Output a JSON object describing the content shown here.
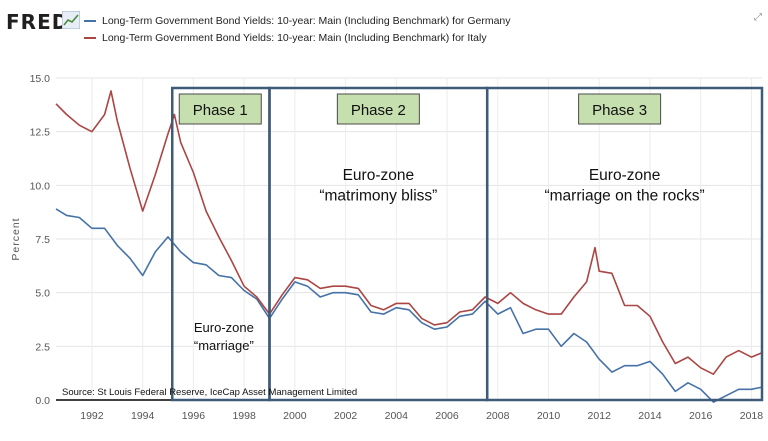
{
  "brand": "FRED",
  "brand_icon": "chart-line-icon",
  "corner_icon": "expand-icon",
  "legend": [
    {
      "label": "Long-Term Government Bond Yields: 10-year: Main (Including Benchmark) for Germany",
      "color": "#4572a7"
    },
    {
      "label": "Long-Term Government Bond Yields: 10-year: Main (Including Benchmark) for Italy",
      "color": "#aa4643"
    }
  ],
  "chart_data": {
    "type": "line",
    "ylabel": "Percent",
    "ylim": [
      0,
      15
    ],
    "xlim": [
      "1990-08",
      "2018-06"
    ],
    "x_ticks": [
      "1992",
      "1994",
      "1996",
      "1998",
      "2000",
      "2002",
      "2004",
      "2006",
      "2008",
      "2010",
      "2012",
      "2014",
      "2016",
      "2018"
    ],
    "y_ticks": [
      "0.0",
      "2.5",
      "5.0",
      "7.5",
      "10.0",
      "12.5",
      "15.0"
    ],
    "grid": true,
    "source": "Source: St Louis Federal Reserve, IceCap Asset Management Limited",
    "series": [
      {
        "name": "Long-Term Government Bond Yields: 10-year: Main (Including Benchmark) for Germany",
        "color": "#4572a7",
        "points": [
          [
            "1990-08",
            8.9
          ],
          [
            "1991-01",
            8.6
          ],
          [
            "1991-07",
            8.5
          ],
          [
            "1992-01",
            8.0
          ],
          [
            "1992-07",
            8.0
          ],
          [
            "1993-01",
            7.2
          ],
          [
            "1993-07",
            6.6
          ],
          [
            "1994-01",
            5.8
          ],
          [
            "1994-07",
            6.9
          ],
          [
            "1995-01",
            7.6
          ],
          [
            "1995-07",
            6.9
          ],
          [
            "1996-01",
            6.4
          ],
          [
            "1996-07",
            6.3
          ],
          [
            "1997-01",
            5.8
          ],
          [
            "1997-07",
            5.7
          ],
          [
            "1998-01",
            5.1
          ],
          [
            "1998-07",
            4.7
          ],
          [
            "1999-01",
            3.8
          ],
          [
            "1999-07",
            4.7
          ],
          [
            "2000-01",
            5.5
          ],
          [
            "2000-07",
            5.3
          ],
          [
            "2001-01",
            4.8
          ],
          [
            "2001-07",
            5.0
          ],
          [
            "2002-01",
            5.0
          ],
          [
            "2002-07",
            4.9
          ],
          [
            "2003-01",
            4.1
          ],
          [
            "2003-07",
            4.0
          ],
          [
            "2004-01",
            4.3
          ],
          [
            "2004-07",
            4.2
          ],
          [
            "2005-01",
            3.6
          ],
          [
            "2005-07",
            3.3
          ],
          [
            "2006-01",
            3.4
          ],
          [
            "2006-07",
            3.9
          ],
          [
            "2007-01",
            4.0
          ],
          [
            "2007-07",
            4.6
          ],
          [
            "2008-01",
            4.0
          ],
          [
            "2008-07",
            4.3
          ],
          [
            "2009-01",
            3.1
          ],
          [
            "2009-07",
            3.3
          ],
          [
            "2010-01",
            3.3
          ],
          [
            "2010-07",
            2.5
          ],
          [
            "2011-01",
            3.1
          ],
          [
            "2011-07",
            2.7
          ],
          [
            "2012-01",
            1.9
          ],
          [
            "2012-07",
            1.3
          ],
          [
            "2013-01",
            1.6
          ],
          [
            "2013-07",
            1.6
          ],
          [
            "2014-01",
            1.8
          ],
          [
            "2014-07",
            1.2
          ],
          [
            "2015-01",
            0.4
          ],
          [
            "2015-07",
            0.8
          ],
          [
            "2016-01",
            0.5
          ],
          [
            "2016-07",
            -0.1
          ],
          [
            "2017-01",
            0.2
          ],
          [
            "2017-07",
            0.5
          ],
          [
            "2018-01",
            0.5
          ],
          [
            "2018-06",
            0.6
          ]
        ]
      },
      {
        "name": "Long-Term Government Bond Yields: 10-year: Main (Including Benchmark) for Italy",
        "color": "#aa4643",
        "points": [
          [
            "1990-08",
            13.8
          ],
          [
            "1991-01",
            13.3
          ],
          [
            "1991-07",
            12.8
          ],
          [
            "1992-01",
            12.5
          ],
          [
            "1992-07",
            13.3
          ],
          [
            "1992-10",
            14.4
          ],
          [
            "1993-01",
            13.0
          ],
          [
            "1993-07",
            10.8
          ],
          [
            "1994-01",
            8.8
          ],
          [
            "1994-07",
            10.5
          ],
          [
            "1995-01",
            12.4
          ],
          [
            "1995-04",
            13.3
          ],
          [
            "1995-07",
            12.0
          ],
          [
            "1996-01",
            10.6
          ],
          [
            "1996-07",
            8.8
          ],
          [
            "1997-01",
            7.6
          ],
          [
            "1997-07",
            6.5
          ],
          [
            "1998-01",
            5.3
          ],
          [
            "1998-07",
            4.8
          ],
          [
            "1999-01",
            4.0
          ],
          [
            "1999-07",
            4.9
          ],
          [
            "2000-01",
            5.7
          ],
          [
            "2000-07",
            5.6
          ],
          [
            "2001-01",
            5.2
          ],
          [
            "2001-07",
            5.3
          ],
          [
            "2002-01",
            5.3
          ],
          [
            "2002-07",
            5.2
          ],
          [
            "2003-01",
            4.4
          ],
          [
            "2003-07",
            4.2
          ],
          [
            "2004-01",
            4.5
          ],
          [
            "2004-07",
            4.5
          ],
          [
            "2005-01",
            3.8
          ],
          [
            "2005-07",
            3.5
          ],
          [
            "2006-01",
            3.6
          ],
          [
            "2006-07",
            4.1
          ],
          [
            "2007-01",
            4.2
          ],
          [
            "2007-07",
            4.8
          ],
          [
            "2008-01",
            4.5
          ],
          [
            "2008-07",
            5.0
          ],
          [
            "2009-01",
            4.5
          ],
          [
            "2009-07",
            4.2
          ],
          [
            "2010-01",
            4.0
          ],
          [
            "2010-07",
            4.0
          ],
          [
            "2011-01",
            4.8
          ],
          [
            "2011-07",
            5.5
          ],
          [
            "2011-11",
            7.1
          ],
          [
            "2012-01",
            6.0
          ],
          [
            "2012-07",
            5.9
          ],
          [
            "2013-01",
            4.4
          ],
          [
            "2013-07",
            4.4
          ],
          [
            "2014-01",
            3.9
          ],
          [
            "2014-07",
            2.7
          ],
          [
            "2015-01",
            1.7
          ],
          [
            "2015-07",
            2.0
          ],
          [
            "2016-01",
            1.5
          ],
          [
            "2016-07",
            1.2
          ],
          [
            "2017-01",
            2.0
          ],
          [
            "2017-07",
            2.3
          ],
          [
            "2018-01",
            2.0
          ],
          [
            "2018-06",
            2.2
          ]
        ]
      }
    ],
    "annotations": {
      "phases": [
        {
          "label": "Phase 1",
          "start": "1995-03",
          "end": "1999-01"
        },
        {
          "label": "Phase 2",
          "start": "1999-01",
          "end": "2007-08"
        },
        {
          "label": "Phase 3",
          "start": "2007-08",
          "end": "2018-06"
        }
      ],
      "labels": [
        {
          "lines": [
            "Euro-zone",
            "“marriage”"
          ],
          "phase": 0
        },
        {
          "lines": [
            "Euro-zone",
            "“matrimony bliss”"
          ],
          "phase": 1
        },
        {
          "lines": [
            "Euro-zone",
            "“marriage on the rocks”"
          ],
          "phase": 2
        }
      ]
    }
  }
}
